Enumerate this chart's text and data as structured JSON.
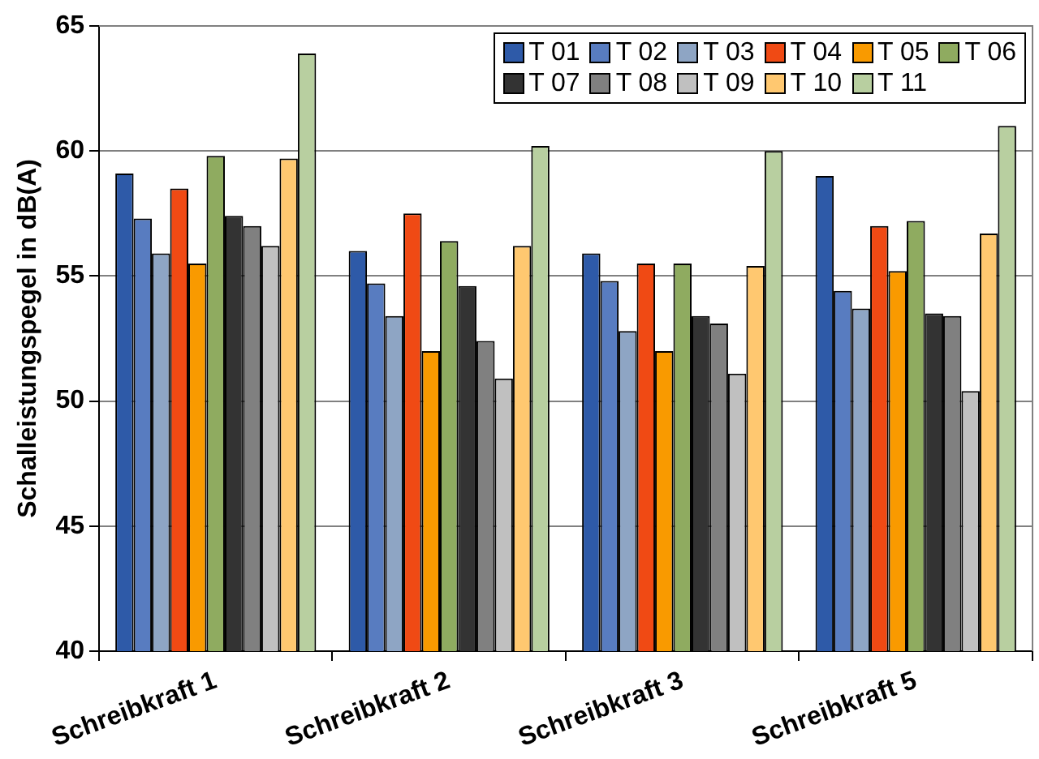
{
  "chart_data": {
    "type": "bar",
    "ylabel": "Schalleistungspegel in dB(A)",
    "categories": [
      "Schreibkraft 1",
      "Schreibkraft 2",
      "Schreibkraft 3",
      "Schreibkraft 5"
    ],
    "ylim": [
      40,
      65
    ],
    "yticks": [
      40,
      45,
      50,
      55,
      60,
      65
    ],
    "grid": "y",
    "legend": "top right",
    "series": [
      {
        "name": "T 01",
        "color": "#2e5aa8",
        "values": [
          59.1,
          56.0,
          55.9,
          59.0
        ]
      },
      {
        "name": "T 02",
        "color": "#587cc0",
        "values": [
          57.3,
          54.7,
          54.8,
          54.4
        ]
      },
      {
        "name": "T 03",
        "color": "#8ea5c4",
        "values": [
          55.9,
          53.4,
          52.8,
          53.7
        ]
      },
      {
        "name": "T 04",
        "color": "#f04a14",
        "values": [
          58.5,
          57.5,
          55.5,
          57.0
        ]
      },
      {
        "name": "T 05",
        "color": "#f99a00",
        "values": [
          55.5,
          52.0,
          52.0,
          55.2
        ]
      },
      {
        "name": "T 06",
        "color": "#8fab60",
        "values": [
          59.8,
          56.4,
          55.5,
          57.2
        ]
      },
      {
        "name": "T 07",
        "color": "#333333",
        "values": [
          57.4,
          54.6,
          53.4,
          53.5
        ]
      },
      {
        "name": "T 08",
        "color": "#808080",
        "values": [
          57.0,
          52.4,
          53.1,
          53.4
        ]
      },
      {
        "name": "T 09",
        "color": "#c0c0c0",
        "values": [
          56.2,
          50.9,
          51.1,
          50.4
        ]
      },
      {
        "name": "T 10",
        "color": "#ffc870",
        "values": [
          59.7,
          56.2,
          55.4,
          56.7
        ]
      },
      {
        "name": "T 11",
        "color": "#b8cfa0",
        "values": [
          63.9,
          60.2,
          60.0,
          61.0
        ]
      }
    ]
  }
}
